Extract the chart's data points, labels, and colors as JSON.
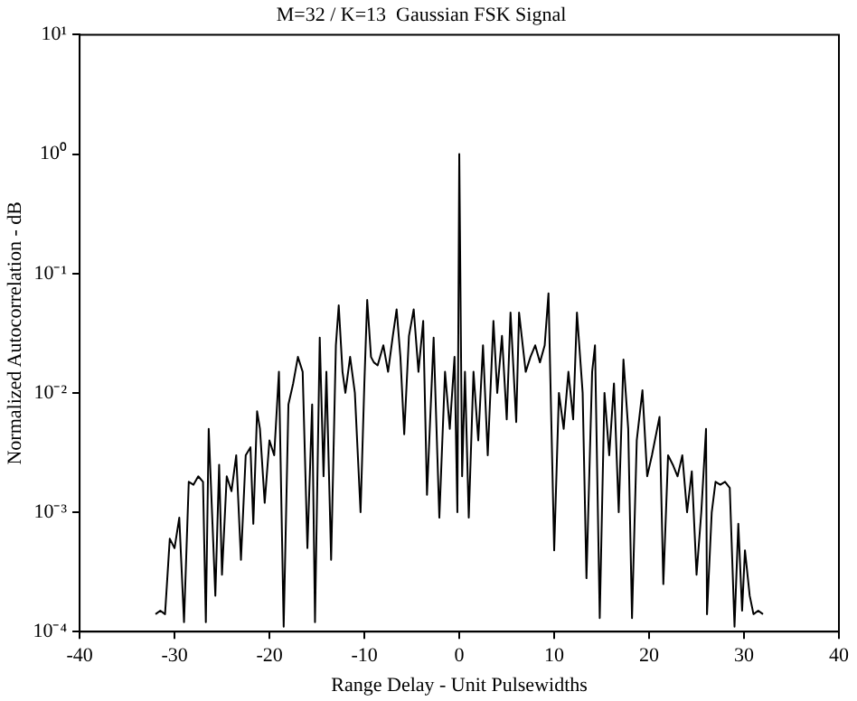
{
  "chart_data": {
    "type": "line",
    "title": "M=32 / K=13  Gaussian FSK Signal",
    "xlabel": "Range Delay - Unit Pulsewidths",
    "ylabel": "Normalized Autocorrelation - dB",
    "log": "y",
    "grid": false,
    "legend": false,
    "marker": "none",
    "line_style": "solid",
    "xlim": [
      -40,
      40
    ],
    "xticks": [
      -40,
      -30,
      -20,
      -10,
      0,
      10,
      20,
      30,
      40
    ],
    "ylim": [
      0.0001,
      10
    ],
    "yticks": [
      {
        "value": 0.0001,
        "label": "10⁻⁴"
      },
      {
        "value": 0.001,
        "label": "10⁻³"
      },
      {
        "value": 0.01,
        "label": "10⁻²"
      },
      {
        "value": 0.1,
        "label": "10⁻¹"
      },
      {
        "value": 1,
        "label": "10⁰"
      },
      {
        "value": 10,
        "label": "10¹"
      }
    ],
    "series": [
      {
        "color": "#000000",
        "x": [
          -32,
          -31.5,
          -31,
          -30.5,
          -30,
          -29.5,
          -29,
          -28.5,
          -28,
          -27.5,
          -27,
          -26.7,
          -26.4,
          -26,
          -25.7,
          -25.3,
          -25,
          -24.5,
          -24,
          -23.5,
          -23,
          -22.5,
          -22,
          -21.7,
          -21.3,
          -21,
          -20.5,
          -20,
          -19.5,
          -19,
          -18.5,
          -18,
          -17.5,
          -17,
          -16.5,
          -16,
          -15.5,
          -15.2,
          -14.7,
          -14.3,
          -14,
          -13.5,
          -13,
          -12.7,
          -12.3,
          -12,
          -11.5,
          -11,
          -10.4,
          -10,
          -9.7,
          -9.3,
          -9,
          -8.6,
          -8,
          -7.5,
          -7,
          -6.6,
          -6.2,
          -5.8,
          -5.3,
          -4.8,
          -4.3,
          -3.8,
          -3.4,
          -2.7,
          -2.1,
          -1.5,
          -1,
          -0.5,
          -0.2,
          0,
          0.3,
          0.6,
          1,
          1.5,
          2,
          2.5,
          3,
          3.6,
          4,
          4.5,
          5,
          5.4,
          6,
          6.3,
          7,
          7.5,
          8,
          8.5,
          9,
          9.4,
          10,
          10.5,
          11,
          11.5,
          12,
          12.4,
          13,
          13.4,
          14,
          14.3,
          14.8,
          15.3,
          15.8,
          16.3,
          16.8,
          17.3,
          17.8,
          18.2,
          18.7,
          19.3,
          19.8,
          20.3,
          21.1,
          21.5,
          22,
          22.5,
          23,
          23.5,
          24,
          24.5,
          25,
          25.5,
          26,
          26.1,
          26.6,
          27,
          27.5,
          28,
          28.5,
          29,
          29.4,
          29.8,
          30.1,
          30.6,
          31,
          31.5,
          32
        ],
        "values": [
          0.00014,
          0.00015,
          0.00014,
          0.0006,
          0.0005,
          0.0009,
          0.00012,
          0.0018,
          0.0017,
          0.002,
          0.0018,
          0.00012,
          0.005,
          0.0008,
          0.0002,
          0.0025,
          0.0003,
          0.002,
          0.0015,
          0.003,
          0.0004,
          0.003,
          0.0035,
          0.0008,
          0.007,
          0.005,
          0.0012,
          0.004,
          0.003,
          0.015,
          0.00011,
          0.008,
          0.012,
          0.02,
          0.015,
          0.0005,
          0.008,
          0.00012,
          0.029,
          0.002,
          0.015,
          0.0004,
          0.025,
          0.054,
          0.015,
          0.01,
          0.02,
          0.01,
          0.001,
          0.012,
          0.06,
          0.02,
          0.018,
          0.017,
          0.025,
          0.015,
          0.03,
          0.05,
          0.02,
          0.0045,
          0.03,
          0.05,
          0.015,
          0.04,
          0.0014,
          0.029,
          0.0009,
          0.015,
          0.005,
          0.02,
          0.001,
          1,
          0.002,
          0.015,
          0.0009,
          0.015,
          0.004,
          0.025,
          0.003,
          0.04,
          0.01,
          0.03,
          0.006,
          0.047,
          0.0057,
          0.047,
          0.015,
          0.02,
          0.025,
          0.018,
          0.025,
          0.068,
          0.00048,
          0.01,
          0.005,
          0.015,
          0.006,
          0.047,
          0.01,
          0.00028,
          0.015,
          0.025,
          0.00013,
          0.01,
          0.003,
          0.012,
          0.001,
          0.019,
          0.005,
          0.00013,
          0.004,
          0.0105,
          0.002,
          0.003,
          0.0063,
          0.00025,
          0.003,
          0.0025,
          0.002,
          0.003,
          0.001,
          0.0022,
          0.0003,
          0.001,
          0.005,
          0.00014,
          0.001,
          0.0018,
          0.0017,
          0.0018,
          0.0016,
          0.00011,
          0.0008,
          0.00015,
          0.00048,
          0.0002,
          0.00014,
          0.00015,
          0.00014
        ]
      }
    ]
  }
}
